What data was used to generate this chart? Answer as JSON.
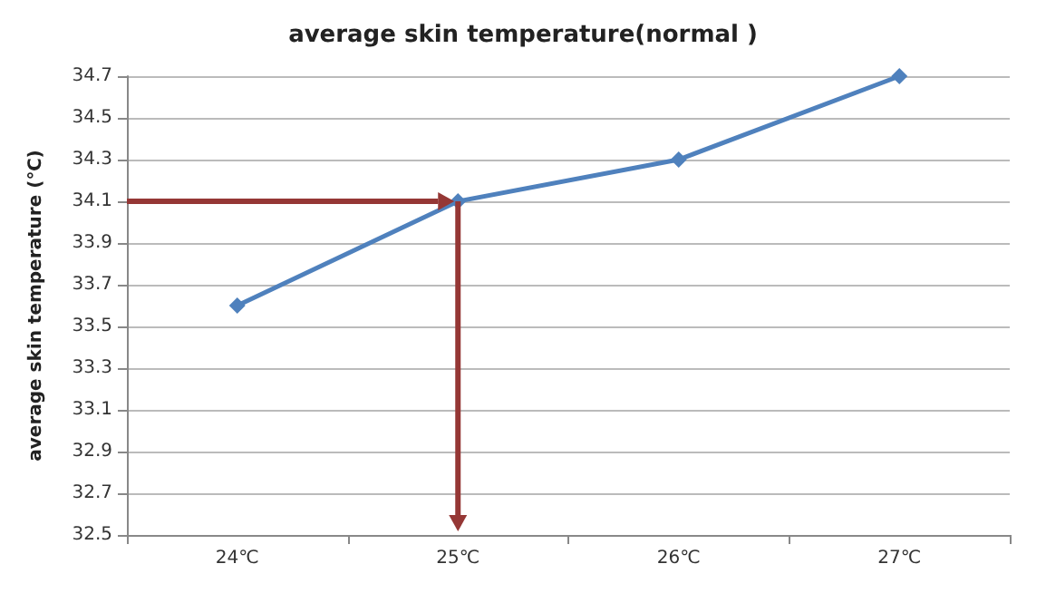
{
  "chart_data": {
    "type": "line",
    "title": "average skin temperature(normal )",
    "ylabel": "average skin temperature (℃)",
    "categories": [
      "24℃",
      "25℃",
      "26℃",
      "27℃"
    ],
    "series": [
      {
        "color": "#4f81bd",
        "values": [
          33.6,
          34.1,
          34.3,
          34.7
        ]
      }
    ],
    "ylim": [
      32.5,
      34.7
    ],
    "yticks": [
      32.5,
      32.7,
      32.9,
      33.1,
      33.3,
      33.5,
      33.7,
      33.9,
      34.1,
      34.3,
      34.5,
      34.7
    ],
    "grid": "y",
    "marker": "diamond"
  }
}
